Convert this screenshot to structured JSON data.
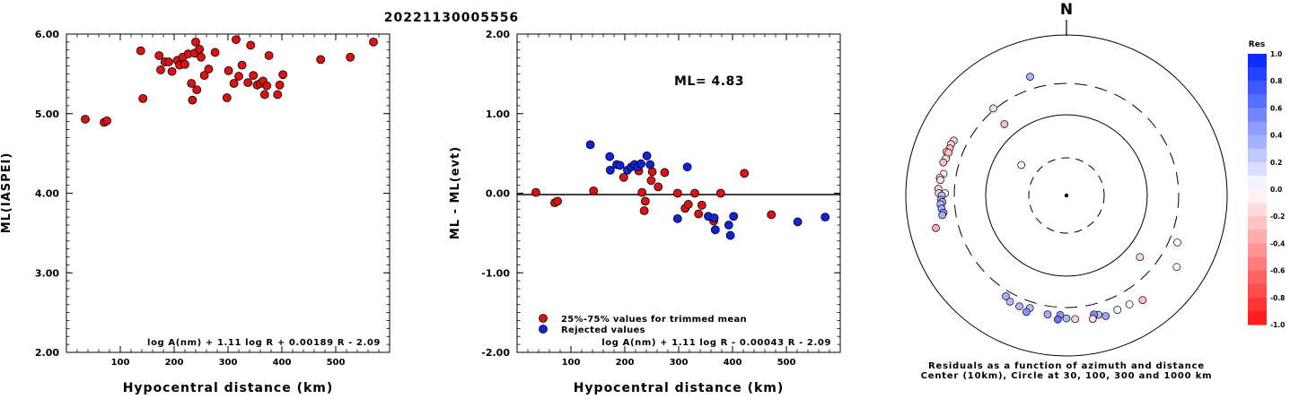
{
  "title": "20221130005556",
  "chart_data": [
    {
      "type": "scatter",
      "xlabel": "Hypocentral distance (km)",
      "ylabel": "ML(IASPEI)",
      "xlim": [
        0,
        600
      ],
      "ylim": [
        2.0,
        6.0
      ],
      "x_ticks": [
        "100",
        "200",
        "300",
        "400",
        "500"
      ],
      "y_ticks": [
        "2.00",
        "3.00",
        "4.00",
        "5.00",
        "6.00"
      ],
      "formula": "log A(nm) + 1.11 log R + 0.00189 R - 2.09",
      "marker_color": "#dd1111",
      "points": [
        [
          35,
          4.93
        ],
        [
          70,
          4.89
        ],
        [
          75,
          4.91
        ],
        [
          138,
          5.79
        ],
        [
          142,
          5.19
        ],
        [
          172,
          5.73
        ],
        [
          175,
          5.55
        ],
        [
          183,
          5.65
        ],
        [
          190,
          5.65
        ],
        [
          196,
          5.53
        ],
        [
          206,
          5.67
        ],
        [
          210,
          5.61
        ],
        [
          216,
          5.71
        ],
        [
          220,
          5.62
        ],
        [
          226,
          5.75
        ],
        [
          232,
          5.38
        ],
        [
          234,
          5.17
        ],
        [
          238,
          5.76
        ],
        [
          240,
          5.9
        ],
        [
          242,
          5.3
        ],
        [
          247,
          5.81
        ],
        [
          250,
          5.71
        ],
        [
          256,
          5.48
        ],
        [
          264,
          5.56
        ],
        [
          276,
          5.77
        ],
        [
          298,
          5.2
        ],
        [
          301,
          5.54
        ],
        [
          311,
          5.38
        ],
        [
          315,
          5.93
        ],
        [
          320,
          5.47
        ],
        [
          326,
          5.61
        ],
        [
          337,
          5.39
        ],
        [
          342,
          5.86
        ],
        [
          347,
          5.48
        ],
        [
          354,
          5.36
        ],
        [
          360,
          5.38
        ],
        [
          365,
          5.41
        ],
        [
          368,
          5.24
        ],
        [
          372,
          5.35
        ],
        [
          376,
          5.73
        ],
        [
          392,
          5.24
        ],
        [
          396,
          5.36
        ],
        [
          402,
          5.49
        ],
        [
          472,
          5.68
        ],
        [
          527,
          5.71
        ],
        [
          570,
          5.9
        ]
      ]
    },
    {
      "type": "scatter",
      "xlabel": "Hypocentral distance (km)",
      "ylabel": "ML - ML(evt)",
      "xlim": [
        0,
        600
      ],
      "ylim": [
        -2.0,
        2.0
      ],
      "x_ticks": [
        "100",
        "200",
        "300",
        "400",
        "500"
      ],
      "y_ticks": [
        "-2.00",
        "-1.00",
        "0.00",
        "1.00",
        "2.00"
      ],
      "annotation": "ML= 4.83",
      "formula": "log A(nm) + 1.11 log R - 0.00043 R - 2.09",
      "legend": [
        {
          "label": "25%-75% values for trimmed mean",
          "color": "#dd1111"
        },
        {
          "label": "Rejected values",
          "color": "#1122dd"
        }
      ],
      "series": [
        {
          "color": "#dd1111",
          "points": [
            [
              35,
              0.01
            ],
            [
              70,
              -0.12
            ],
            [
              75,
              -0.1
            ],
            [
              142,
              0.03
            ],
            [
              198,
              0.2
            ],
            [
              226,
              0.28
            ],
            [
              232,
              0.01
            ],
            [
              236,
              -0.22
            ],
            [
              238,
              -0.1
            ],
            [
              249,
              0.16
            ],
            [
              251,
              0.27
            ],
            [
              262,
              0.08
            ],
            [
              274,
              0.26
            ],
            [
              298,
              0.0
            ],
            [
              312,
              -0.19
            ],
            [
              318,
              -0.14
            ],
            [
              330,
              0.0
            ],
            [
              337,
              -0.26
            ],
            [
              343,
              -0.15
            ],
            [
              365,
              -0.35
            ],
            [
              378,
              0.0
            ],
            [
              422,
              0.25
            ],
            [
              472,
              -0.27
            ]
          ]
        },
        {
          "color": "#1122dd",
          "points": [
            [
              136,
              0.61
            ],
            [
              172,
              0.46
            ],
            [
              173,
              0.29
            ],
            [
              185,
              0.36
            ],
            [
              191,
              0.35
            ],
            [
              205,
              0.29
            ],
            [
              212,
              0.33
            ],
            [
              218,
              0.36
            ],
            [
              224,
              0.33
            ],
            [
              230,
              0.37
            ],
            [
              241,
              0.47
            ],
            [
              247,
              0.36
            ],
            [
              298,
              -0.32
            ],
            [
              316,
              0.33
            ],
            [
              355,
              -0.29
            ],
            [
              366,
              -0.31
            ],
            [
              368,
              -0.46
            ],
            [
              393,
              -0.4
            ],
            [
              396,
              -0.53
            ],
            [
              402,
              -0.29
            ],
            [
              521,
              -0.36
            ],
            [
              572,
              -0.3
            ]
          ]
        }
      ]
    },
    {
      "type": "scatter",
      "subtype": "polar",
      "north_label": "N",
      "caption": [
        "Residuals as a function of azimuth and distance",
        "Center (10km), Circle at 30, 100, 300 and 1000 km"
      ],
      "rings_km": [
        30,
        100,
        300,
        1000
      ],
      "colorbar": {
        "title": "Res",
        "ticks": [
          "1.0",
          "0.8",
          "0.6",
          "0.4",
          "0.2",
          "0.0",
          "-0.2",
          "-0.4",
          "-0.6",
          "-0.8",
          "-1.0"
        ],
        "top_color": "#0022ff",
        "bottom_color": "#ff1111"
      },
      "points": [
        {
          "az": 343,
          "dist": 405,
          "res": 0.33
        },
        {
          "az": 320,
          "dist": 312,
          "res": -0.14
        },
        {
          "az": 319,
          "dist": 162,
          "res": -0.26
        },
        {
          "az": 304,
          "dist": 48,
          "res": 0.01
        },
        {
          "az": 296,
          "dist": 417,
          "res": -0.2
        },
        {
          "az": 294,
          "dist": 426,
          "res": -0.22
        },
        {
          "az": 292,
          "dist": 421,
          "res": -0.28
        },
        {
          "az": 290,
          "dist": 442,
          "res": -0.27
        },
        {
          "az": 290,
          "dist": 417,
          "res": -0.26
        },
        {
          "az": 287,
          "dist": 424,
          "res": -0.16
        },
        {
          "az": 285,
          "dist": 439,
          "res": -0.27
        },
        {
          "az": 280,
          "dist": 410,
          "res": -0.1
        },
        {
          "az": 278,
          "dist": 443,
          "res": -0.22
        },
        {
          "az": 277,
          "dist": 433,
          "res": -0.1
        },
        {
          "az": 273,
          "dist": 447,
          "res": -0.19
        },
        {
          "az": 271,
          "dist": 441,
          "res": -0.19
        },
        {
          "az": 271,
          "dist": 378,
          "res": 0.01
        },
        {
          "az": 270,
          "dist": 410,
          "res": 0.29
        },
        {
          "az": 268,
          "dist": 417,
          "res": 0.35
        },
        {
          "az": 267,
          "dist": 404,
          "res": 0.36
        },
        {
          "az": 266,
          "dist": 425,
          "res": 0.33
        },
        {
          "az": 264,
          "dist": 418,
          "res": 0.37
        },
        {
          "az": 262,
          "dist": 404,
          "res": 0.46
        },
        {
          "az": 261,
          "dist": 420,
          "res": 0.36
        },
        {
          "az": 256,
          "dist": 523,
          "res": -0.35
        },
        {
          "az": 130,
          "dist": 170,
          "res": -0.15
        },
        {
          "az": 123,
          "dist": 484,
          "res": 0.0
        },
        {
          "az": 113,
          "dist": 368,
          "res": 0.01
        },
        {
          "az": 162,
          "dist": 432,
          "res": 0.4
        },
        {
          "az": 165,
          "dist": 398,
          "res": 0.29
        },
        {
          "az": 167,
          "dist": 385,
          "res": 0.53
        },
        {
          "az": 176,
          "dist": 402,
          "res": -0.19
        },
        {
          "az": 180,
          "dist": 393,
          "res": 0.31
        },
        {
          "az": 183,
          "dist": 363,
          "res": 0.46
        },
        {
          "az": 184,
          "dist": 407,
          "res": 0.61
        },
        {
          "az": 189,
          "dist": 369,
          "res": 0.36
        },
        {
          "az": 198,
          "dist": 351,
          "res": 0.29
        },
        {
          "az": 199,
          "dist": 395,
          "res": 0.47
        },
        {
          "az": 203,
          "dist": 369,
          "res": 0.33
        },
        {
          "az": 208,
          "dist": 367,
          "res": 0.29
        },
        {
          "az": 211,
          "dist": 344,
          "res": 0.36
        },
        {
          "az": 144,
          "dist": 461,
          "res": -0.26
        },
        {
          "az": 150,
          "dist": 421,
          "res": 0.0
        },
        {
          "az": 156,
          "dist": 415,
          "res": 0.02
        },
        {
          "az": 168,
          "dist": 426,
          "res": -0.15
        }
      ]
    }
  ]
}
